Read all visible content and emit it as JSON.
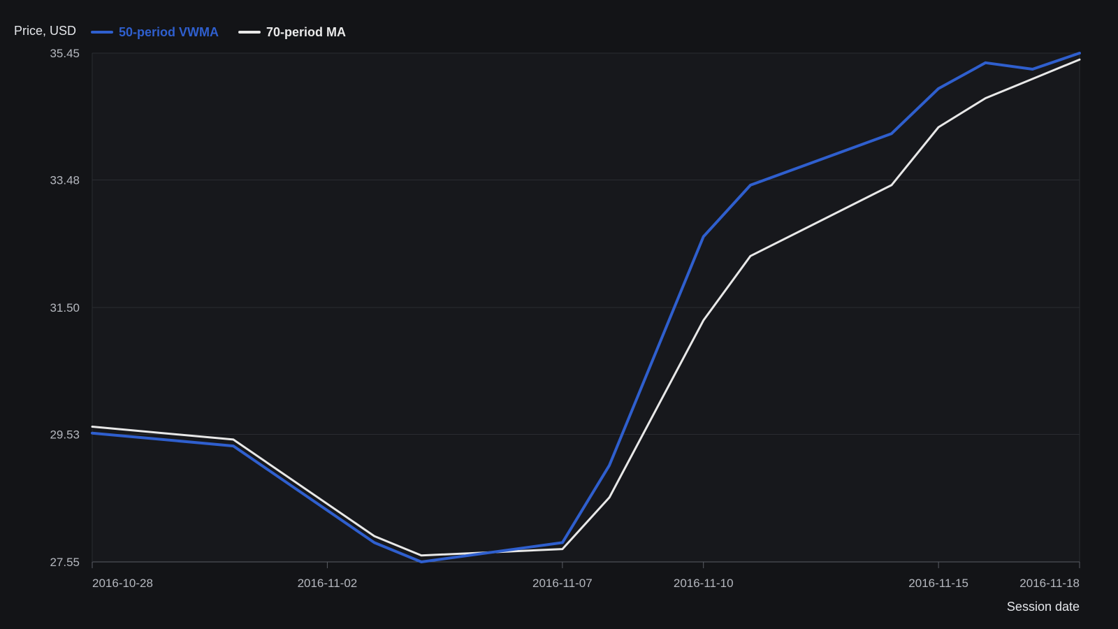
{
  "chart_data": {
    "type": "line",
    "title": "",
    "ylabel": "Price, USD",
    "xlabel": "Session date",
    "ylim": [
      27.55,
      35.45
    ],
    "y_ticks": [
      "27.55",
      "29.53",
      "31.50",
      "33.48",
      "35.45"
    ],
    "x_ticks": [
      "2016-10-28",
      "2016-11-02",
      "2016-11-07",
      "2016-11-10",
      "2016-11-15",
      "2016-11-18"
    ],
    "x": [
      "2016-10-28",
      "2016-10-31",
      "2016-11-03",
      "2016-11-04",
      "2016-11-07",
      "2016-11-08",
      "2016-11-10",
      "2016-11-11",
      "2016-11-14",
      "2016-11-15",
      "2016-11-16",
      "2016-11-17",
      "2016-11-18"
    ],
    "series": [
      {
        "name": "50-period VWMA",
        "color": "#2f5fce",
        "values": [
          29.55,
          29.35,
          27.85,
          27.55,
          27.85,
          29.05,
          32.6,
          33.4,
          34.2,
          34.9,
          35.3,
          35.2,
          35.45
        ]
      },
      {
        "name": "70-period MA",
        "color": "#e8e8e8",
        "values": [
          29.65,
          29.45,
          27.95,
          27.65,
          27.75,
          28.55,
          31.3,
          32.3,
          33.4,
          34.3,
          34.75,
          35.05,
          35.35
        ]
      }
    ],
    "grid": true,
    "legend_position": "top-left",
    "colors": {
      "background": "#131417",
      "plot_background": "#17181c",
      "grid": "#2a2c31",
      "axis": "#5a5d64"
    }
  }
}
